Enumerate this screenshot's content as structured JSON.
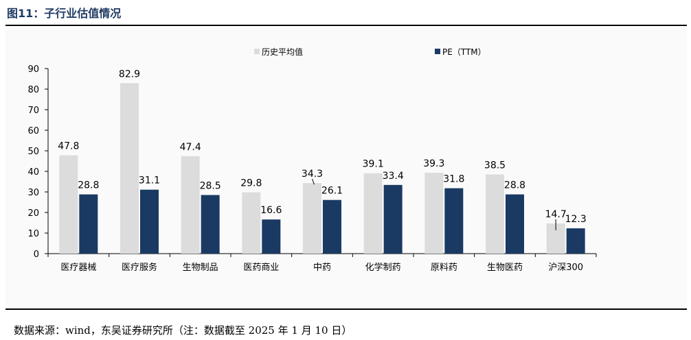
{
  "figure": {
    "title": "图11：子行业估值情况",
    "source_note": "数据来源：wind，东吴证券研究所（注：数据截至 2025 年 1 月 10 日）"
  },
  "chart_data": {
    "type": "bar",
    "categories": [
      "医疗器械",
      "医疗服务",
      "生物制品",
      "医药商业",
      "中药",
      "化学制药",
      "原料药",
      "生物医药",
      "沪深300"
    ],
    "series": [
      {
        "name": "历史平均值",
        "values": [
          47.8,
          82.9,
          47.4,
          29.8,
          34.3,
          39.1,
          39.3,
          38.5,
          14.7
        ],
        "color": "#dcdcdc"
      },
      {
        "name": "PE（TTM）",
        "values": [
          28.8,
          31.1,
          28.5,
          16.6,
          26.1,
          33.4,
          31.8,
          28.8,
          12.3
        ],
        "color": "#1a3a63"
      }
    ],
    "ylim": [
      0,
      90
    ],
    "yticks": [
      0,
      10,
      20,
      30,
      40,
      50,
      60,
      70,
      80,
      90
    ],
    "xlabel": "",
    "ylabel": "",
    "legend_position": "top",
    "grid": false
  }
}
